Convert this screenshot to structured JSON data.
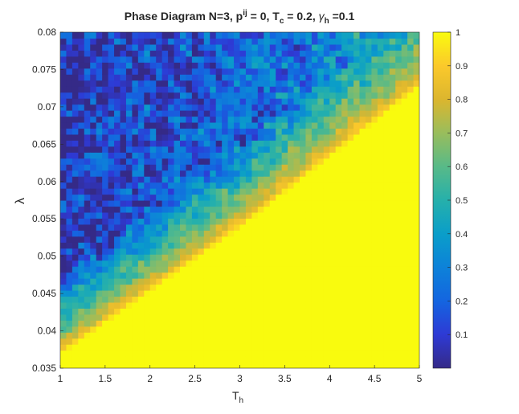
{
  "chart_data": {
    "type": "heatmap",
    "title": {
      "prefix": "Phase Diagram N=3, p",
      "p_superscript": "ij",
      "mid1": " = 0, T",
      "tc_subscript": "c",
      "mid2": " = 0.2, ",
      "gamma_symbol": "γ",
      "gamma_subscript": "h",
      "suffix": " =0.1"
    },
    "xlabel": {
      "main": "T",
      "subscript": "h"
    },
    "ylabel": "λ",
    "xlim": [
      1,
      5
    ],
    "ylim": [
      0.035,
      0.08
    ],
    "x_ticks": [
      "1",
      "1.5",
      "2",
      "2.5",
      "3",
      "3.5",
      "4",
      "4.5",
      "5"
    ],
    "y_ticks": [
      "0.035",
      "0.04",
      "0.045",
      "0.05",
      "0.055",
      "0.06",
      "0.065",
      "0.07",
      "0.075",
      "0.08"
    ],
    "colorbar": {
      "colormap": "parula",
      "range": [
        0,
        1
      ],
      "ticks": [
        "0.1",
        "0.2",
        "0.3",
        "0.4",
        "0.5",
        "0.6",
        "0.7",
        "0.8",
        "0.9",
        "1"
      ]
    },
    "boundary": {
      "description_values": "fidelity value per (T_h, lambda); region below boundary saturates at 1",
      "boundary_points": [
        [
          1,
          0.037
        ],
        [
          3,
          0.054
        ],
        [
          5,
          0.073
        ]
      ],
      "saturated_value": 1,
      "disordered_region_range": [
        0.05,
        0.85
      ]
    },
    "grid": false
  }
}
